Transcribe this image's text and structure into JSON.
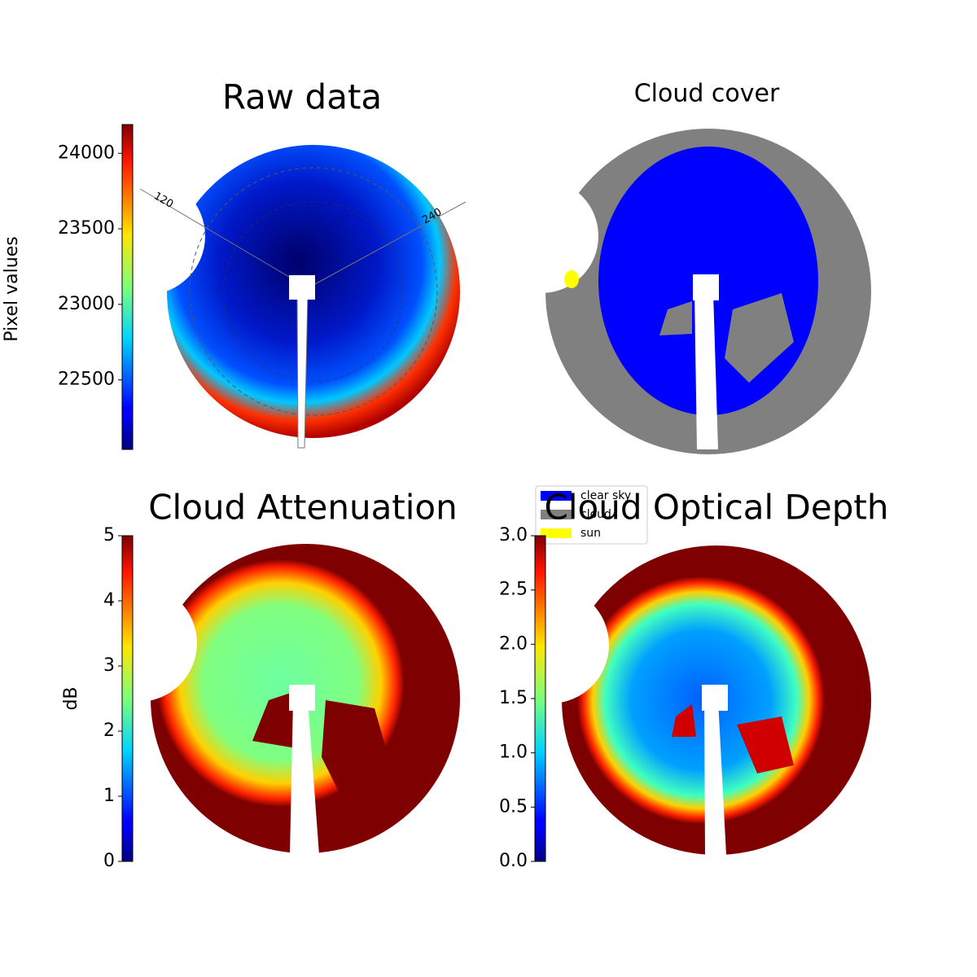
{
  "chart_data": [
    {
      "type": "heatmap",
      "title": "Raw data",
      "colorbar_label": "Pixel values",
      "clim": [
        22040,
        24190
      ],
      "cticks": [
        22500,
        23000,
        23500,
        24000
      ],
      "colormap": "jet",
      "annotations": [
        "120",
        "240"
      ]
    },
    {
      "type": "categorical",
      "title": "Cloud cover",
      "legend": [
        {
          "name": "clear sky",
          "color": "#0000ff"
        },
        {
          "name": "cloud",
          "color": "#808080"
        },
        {
          "name": "sun",
          "color": "#ffff00"
        }
      ]
    },
    {
      "type": "heatmap",
      "title": "Cloud Attenuation",
      "colorbar_label": "dB",
      "clim": [
        0,
        5
      ],
      "cticks": [
        0,
        1,
        2,
        3,
        4,
        5
      ],
      "colormap": "jet"
    },
    {
      "type": "heatmap",
      "title": "Cloud Optical Depth",
      "clim": [
        0,
        3
      ],
      "cticks": [
        {
          "value": 0,
          "label": "0.0"
        },
        {
          "value": 0.5,
          "label": "0.5"
        },
        {
          "value": 1,
          "label": "1.0"
        },
        {
          "value": 1.5,
          "label": "1.5"
        },
        {
          "value": 2,
          "label": "2.0"
        },
        {
          "value": 2.5,
          "label": "2.5"
        },
        {
          "value": 3,
          "label": "3.0"
        }
      ],
      "colormap": "jet"
    }
  ]
}
